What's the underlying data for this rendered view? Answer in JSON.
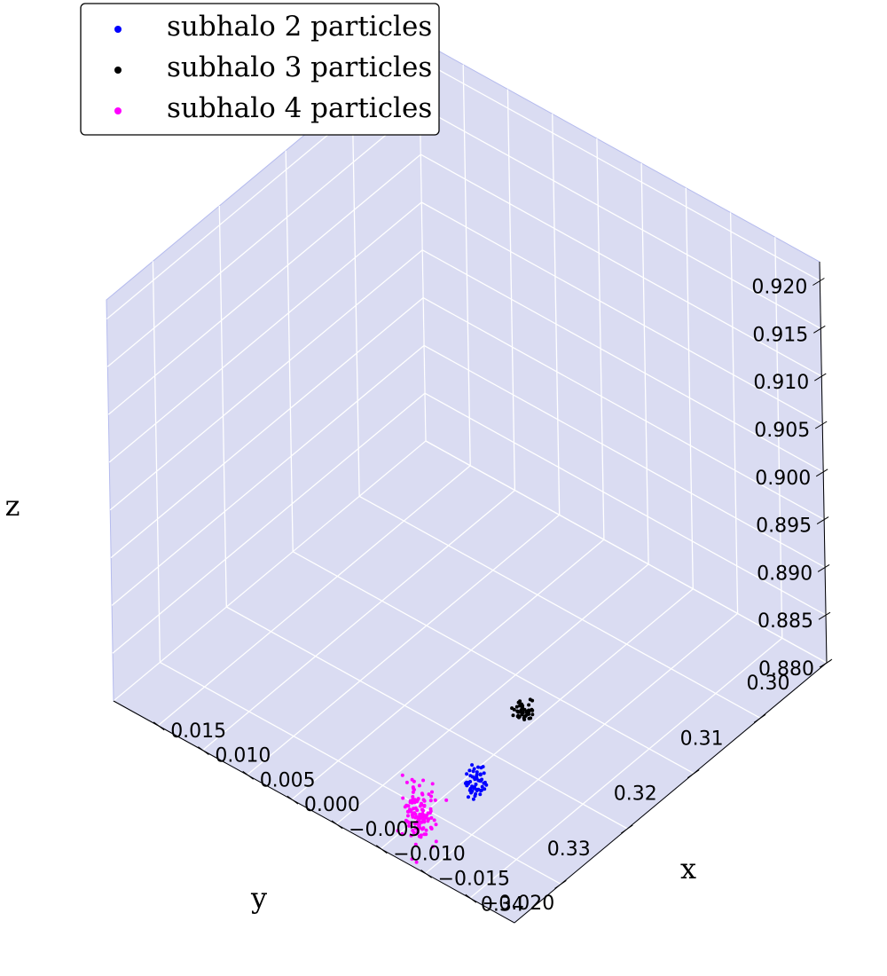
{
  "chart_data": {
    "type": "scatter",
    "projection": "3d",
    "xlabel": "x",
    "ylabel": "y",
    "zlabel": "z",
    "xlim": [
      0.02,
      -0.025
    ],
    "ylim": [
      0.3,
      0.347
    ],
    "zlim": [
      0.88,
      0.922
    ],
    "x_ticks": [
      "−0.020",
      "−0.015",
      "−0.010",
      "−0.005",
      "0.000",
      "0.005",
      "0.010",
      "0.015"
    ],
    "x_tick_values": [
      -0.02,
      -0.015,
      -0.01,
      -0.005,
      0.0,
      0.005,
      0.01,
      0.015
    ],
    "y_ticks": [
      "0.30",
      "0.31",
      "0.32",
      "0.33",
      "0.34"
    ],
    "y_tick_values": [
      0.3,
      0.31,
      0.32,
      0.33,
      0.34
    ],
    "z_ticks": [
      "0.880",
      "0.885",
      "0.890",
      "0.895",
      "0.900",
      "0.905",
      "0.910",
      "0.915",
      "0.920"
    ],
    "z_tick_values": [
      0.88,
      0.885,
      0.89,
      0.895,
      0.9,
      0.905,
      0.91,
      0.915,
      0.92
    ],
    "grid": true,
    "pane_color": "#dadcf2",
    "legend_position": "top-left",
    "series": [
      {
        "name": "subhalo 2 particles",
        "color": "#0000ff",
        "center": [
          -0.011,
          0.334,
          0.88
        ],
        "spread": [
          0.0005,
          0.0005,
          0.0008
        ],
        "count": 55
      },
      {
        "name": "subhalo 3 particles",
        "color": "#000000",
        "center": [
          -0.0085,
          0.3235,
          0.88
        ],
        "spread": [
          0.0005,
          0.0005,
          0.0005
        ],
        "count": 45
      },
      {
        "name": "subhalo 4 particles",
        "color": "#ff00ff",
        "center": [
          -0.0105,
          0.342,
          0.881
        ],
        "spread": [
          0.0007,
          0.0007,
          0.0014
        ],
        "count": 130
      }
    ]
  }
}
